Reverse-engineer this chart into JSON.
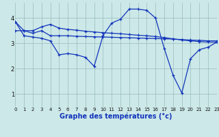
{
  "background_color": "#cce8e8",
  "grid_color": "#99bbbb",
  "line_color": "#1133bb",
  "marker": "+",
  "xlabel": "Graphe des températures (°c)",
  "xlabel_fontsize": 7,
  "yticks": [
    1,
    2,
    3,
    4
  ],
  "xtick_labels": [
    "0",
    "1",
    "2",
    "3",
    "4",
    "5",
    "6",
    "7",
    "8",
    "9",
    "10",
    "11",
    "12",
    "13",
    "14",
    "15",
    "16",
    "17",
    "18",
    "19",
    "20",
    "21",
    "22",
    "23"
  ],
  "xlim": [
    0,
    23
  ],
  "ylim": [
    0.5,
    4.6
  ],
  "series": [
    {
      "x": [
        0,
        1,
        2,
        3,
        4,
        5,
        6,
        7,
        8,
        9,
        10,
        11,
        12,
        13,
        14,
        15,
        16,
        17,
        18,
        19,
        20,
        21,
        22,
        23
      ],
      "y": [
        3.85,
        3.5,
        3.4,
        3.5,
        3.3,
        3.3,
        3.3,
        3.28,
        3.27,
        3.26,
        3.25,
        3.24,
        3.23,
        3.22,
        3.21,
        3.2,
        3.19,
        3.18,
        3.17,
        3.15,
        3.13,
        3.12,
        3.1,
        3.1
      ]
    },
    {
      "x": [
        0,
        1,
        2,
        3,
        4,
        5,
        6,
        7,
        8,
        9,
        10,
        11,
        12,
        13,
        14,
        15,
        16,
        17,
        18,
        19,
        20,
        21,
        22,
        23
      ],
      "y": [
        3.5,
        3.5,
        3.5,
        3.65,
        3.75,
        3.6,
        3.55,
        3.52,
        3.48,
        3.45,
        3.42,
        3.4,
        3.38,
        3.35,
        3.32,
        3.3,
        3.27,
        3.23,
        3.18,
        3.13,
        3.1,
        3.07,
        3.05,
        3.05
      ]
    },
    {
      "x": [
        0,
        1,
        2,
        3,
        4,
        5,
        6,
        7,
        8,
        9,
        10,
        11,
        12,
        13,
        14,
        15,
        16,
        17,
        18,
        19,
        20,
        21,
        22,
        23
      ],
      "y": [
        3.85,
        3.3,
        3.25,
        3.2,
        3.1,
        2.55,
        2.6,
        2.55,
        2.45,
        2.1,
        3.3,
        3.8,
        3.95,
        4.35,
        4.35,
        4.3,
        4.0,
        2.8,
        1.75,
        1.05,
        2.4,
        2.75,
        2.85,
        3.05
      ]
    }
  ]
}
